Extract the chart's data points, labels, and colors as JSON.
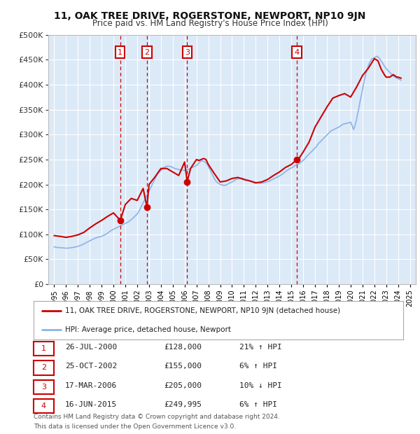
{
  "title": "11, OAK TREE DRIVE, ROGERSTONE, NEWPORT, NP10 9JN",
  "subtitle": "Price paid vs. HM Land Registry's House Price Index (HPI)",
  "plot_bg_color": "#dce9f7",
  "ylim": [
    0,
    500000
  ],
  "yticks": [
    0,
    50000,
    100000,
    150000,
    200000,
    250000,
    300000,
    350000,
    400000,
    450000,
    500000
  ],
  "xlim_start": 1994.5,
  "xlim_end": 2025.5,
  "hpi_color": "#8ab4e8",
  "price_color": "#cc0000",
  "sale_dot_color": "#cc0000",
  "annotation_box_color": "#cc0000",
  "vline_color": "#cc0000",
  "grid_color": "#ffffff",
  "sales": [
    {
      "id": 1,
      "date_label": "26-JUL-2000",
      "year": 2000.57,
      "price": 128000,
      "pct": "21%",
      "direction": "↑"
    },
    {
      "id": 2,
      "date_label": "25-OCT-2002",
      "year": 2002.82,
      "price": 155000,
      "pct": "6%",
      "direction": "↑"
    },
    {
      "id": 3,
      "date_label": "17-MAR-2006",
      "year": 2006.21,
      "price": 205000,
      "pct": "10%",
      "direction": "↓"
    },
    {
      "id": 4,
      "date_label": "16-JUN-2015",
      "year": 2015.46,
      "price": 249995,
      "pct": "6%",
      "direction": "↑"
    }
  ],
  "legend_label_red": "11, OAK TREE DRIVE, ROGERSTONE, NEWPORT, NP10 9JN (detached house)",
  "legend_label_blue": "HPI: Average price, detached house, Newport",
  "footnote1": "Contains HM Land Registry data © Crown copyright and database right 2024.",
  "footnote2": "This data is licensed under the Open Government Licence v3.0.",
  "hpi_data": {
    "years": [
      1995.0,
      1995.08,
      1995.17,
      1995.25,
      1995.33,
      1995.42,
      1995.5,
      1995.58,
      1995.67,
      1995.75,
      1995.83,
      1995.92,
      1996.0,
      1996.08,
      1996.17,
      1996.25,
      1996.33,
      1996.42,
      1996.5,
      1996.58,
      1996.67,
      1996.75,
      1996.83,
      1996.92,
      1997.0,
      1997.08,
      1997.17,
      1997.25,
      1997.33,
      1997.42,
      1997.5,
      1997.58,
      1997.67,
      1997.75,
      1997.83,
      1997.92,
      1998.0,
      1998.08,
      1998.17,
      1998.25,
      1998.33,
      1998.42,
      1998.5,
      1998.58,
      1998.67,
      1998.75,
      1998.83,
      1998.92,
      1999.0,
      1999.08,
      1999.17,
      1999.25,
      1999.33,
      1999.42,
      1999.5,
      1999.58,
      1999.67,
      1999.75,
      1999.83,
      1999.92,
      2000.0,
      2000.08,
      2000.17,
      2000.25,
      2000.33,
      2000.42,
      2000.5,
      2000.58,
      2000.67,
      2000.75,
      2000.83,
      2000.92,
      2001.0,
      2001.08,
      2001.17,
      2001.25,
      2001.33,
      2001.42,
      2001.5,
      2001.58,
      2001.67,
      2001.75,
      2001.83,
      2001.92,
      2002.0,
      2002.08,
      2002.17,
      2002.25,
      2002.33,
      2002.42,
      2002.5,
      2002.58,
      2002.67,
      2002.75,
      2002.83,
      2002.92,
      2003.0,
      2003.08,
      2003.17,
      2003.25,
      2003.33,
      2003.42,
      2003.5,
      2003.58,
      2003.67,
      2003.75,
      2003.83,
      2003.92,
      2004.0,
      2004.08,
      2004.17,
      2004.25,
      2004.33,
      2004.42,
      2004.5,
      2004.58,
      2004.67,
      2004.75,
      2004.83,
      2004.92,
      2005.0,
      2005.08,
      2005.17,
      2005.25,
      2005.33,
      2005.42,
      2005.5,
      2005.58,
      2005.67,
      2005.75,
      2005.83,
      2005.92,
      2006.0,
      2006.08,
      2006.17,
      2006.25,
      2006.33,
      2006.42,
      2006.5,
      2006.58,
      2006.67,
      2006.75,
      2006.83,
      2006.92,
      2007.0,
      2007.08,
      2007.17,
      2007.25,
      2007.33,
      2007.42,
      2007.5,
      2007.58,
      2007.67,
      2007.75,
      2007.83,
      2007.92,
      2008.0,
      2008.08,
      2008.17,
      2008.25,
      2008.33,
      2008.42,
      2008.5,
      2008.58,
      2008.67,
      2008.75,
      2008.83,
      2008.92,
      2009.0,
      2009.08,
      2009.17,
      2009.25,
      2009.33,
      2009.42,
      2009.5,
      2009.58,
      2009.67,
      2009.75,
      2009.83,
      2009.92,
      2010.0,
      2010.08,
      2010.17,
      2010.25,
      2010.33,
      2010.42,
      2010.5,
      2010.58,
      2010.67,
      2010.75,
      2010.83,
      2010.92,
      2011.0,
      2011.08,
      2011.17,
      2011.25,
      2011.33,
      2011.42,
      2011.5,
      2011.58,
      2011.67,
      2011.75,
      2011.83,
      2011.92,
      2012.0,
      2012.08,
      2012.17,
      2012.25,
      2012.33,
      2012.42,
      2012.5,
      2012.58,
      2012.67,
      2012.75,
      2012.83,
      2012.92,
      2013.0,
      2013.08,
      2013.17,
      2013.25,
      2013.33,
      2013.42,
      2013.5,
      2013.58,
      2013.67,
      2013.75,
      2013.83,
      2013.92,
      2014.0,
      2014.08,
      2014.17,
      2014.25,
      2014.33,
      2014.42,
      2014.5,
      2014.58,
      2014.67,
      2014.75,
      2014.83,
      2014.92,
      2015.0,
      2015.08,
      2015.17,
      2015.25,
      2015.33,
      2015.42,
      2015.5,
      2015.58,
      2015.67,
      2015.75,
      2015.83,
      2015.92,
      2016.0,
      2016.08,
      2016.17,
      2016.25,
      2016.33,
      2016.42,
      2016.5,
      2016.58,
      2016.67,
      2016.75,
      2016.83,
      2016.92,
      2017.0,
      2017.08,
      2017.17,
      2017.25,
      2017.33,
      2017.42,
      2017.5,
      2017.58,
      2017.67,
      2017.75,
      2017.83,
      2017.92,
      2018.0,
      2018.08,
      2018.17,
      2018.25,
      2018.33,
      2018.42,
      2018.5,
      2018.58,
      2018.67,
      2018.75,
      2018.83,
      2018.92,
      2019.0,
      2019.08,
      2019.17,
      2019.25,
      2019.33,
      2019.42,
      2019.5,
      2019.58,
      2019.67,
      2019.75,
      2019.83,
      2019.92,
      2020.0,
      2020.08,
      2020.17,
      2020.25,
      2020.33,
      2020.42,
      2020.5,
      2020.58,
      2020.67,
      2020.75,
      2020.83,
      2020.92,
      2021.0,
      2021.08,
      2021.17,
      2021.25,
      2021.33,
      2021.42,
      2021.5,
      2021.58,
      2021.67,
      2021.75,
      2021.83,
      2021.92,
      2022.0,
      2022.08,
      2022.17,
      2022.25,
      2022.33,
      2022.42,
      2022.5,
      2022.58,
      2022.67,
      2022.75,
      2022.83,
      2022.92,
      2023.0,
      2023.08,
      2023.17,
      2023.25,
      2023.33,
      2023.42,
      2023.5,
      2023.58,
      2023.67,
      2023.75,
      2023.83,
      2023.92,
      2024.0,
      2024.08,
      2024.17,
      2024.25
    ],
    "values": [
      75000,
      74500,
      74000,
      73800,
      73600,
      73500,
      73400,
      73200,
      73000,
      72800,
      72600,
      72500,
      72400,
      72300,
      72500,
      72800,
      73000,
      73200,
      73500,
      73800,
      74000,
      74500,
      75000,
      75500,
      76000,
      76800,
      77500,
      78200,
      79000,
      80000,
      81000,
      82000,
      83000,
      84000,
      85000,
      86000,
      87000,
      88000,
      89000,
      90000,
      91000,
      92000,
      93000,
      93500,
      94000,
      94500,
      95000,
      95500,
      96000,
      97000,
      98000,
      99000,
      100000,
      101000,
      102500,
      104000,
      105500,
      107000,
      108000,
      109000,
      110000,
      111000,
      112000,
      113000,
      114000,
      115000,
      116000,
      117000,
      118000,
      119000,
      120000,
      121000,
      122000,
      123000,
      124000,
      125000,
      126500,
      128000,
      129500,
      131000,
      133000,
      135000,
      137000,
      139000,
      141000,
      144000,
      147000,
      151000,
      155000,
      159000,
      163000,
      167000,
      171000,
      175000,
      179000,
      183000,
      187000,
      191000,
      195000,
      199000,
      203000,
      207000,
      211000,
      215000,
      219000,
      222000,
      224000,
      226000,
      228000,
      230000,
      232000,
      234000,
      235000,
      236000,
      236500,
      237000,
      236500,
      236000,
      235500,
      235000,
      234000,
      233000,
      232000,
      231500,
      231000,
      230500,
      230000,
      229500,
      229000,
      228800,
      228600,
      228400,
      228200,
      228500,
      229000,
      229500,
      230000,
      231000,
      232000,
      233000,
      234000,
      235000,
      236000,
      237000,
      238000,
      240000,
      242000,
      244000,
      246000,
      247000,
      247500,
      247000,
      246000,
      244000,
      242000,
      240000,
      236000,
      232000,
      228000,
      224000,
      220000,
      216000,
      212000,
      209000,
      206000,
      204000,
      202500,
      201000,
      200000,
      199500,
      199000,
      198500,
      198000,
      198500,
      199000,
      200000,
      201000,
      202000,
      203000,
      204000,
      205000,
      206000,
      207500,
      209000,
      210000,
      210500,
      211000,
      211500,
      212000,
      212500,
      213000,
      212000,
      211000,
      210000,
      209500,
      209000,
      208500,
      208000,
      207500,
      207000,
      206500,
      206000,
      205500,
      205000,
      204500,
      204000,
      203500,
      203000,
      202500,
      202000,
      202500,
      203000,
      203500,
      204000,
      204500,
      205000,
      205500,
      206000,
      207000,
      208000,
      209000,
      210000,
      211000,
      212000,
      213000,
      214000,
      215000,
      216000,
      217000,
      218000,
      219500,
      221000,
      222500,
      224000,
      225500,
      227000,
      228500,
      230000,
      231000,
      232000,
      233000,
      234000,
      235500,
      237000,
      238000,
      239000,
      240000,
      241000,
      242000,
      243500,
      245000,
      246500,
      248000,
      250000,
      252000,
      255000,
      257000,
      259000,
      261000,
      263000,
      265000,
      267000,
      269000,
      271000,
      273000,
      275000,
      278000,
      281000,
      283000,
      285000,
      287000,
      289000,
      291000,
      293000,
      295000,
      297000,
      299000,
      301000,
      303000,
      305000,
      307000,
      308000,
      309000,
      310000,
      311000,
      312000,
      313000,
      314000,
      315000,
      316000,
      317500,
      319000,
      320500,
      321000,
      321500,
      322000,
      322500,
      323000,
      323500,
      324000,
      325000,
      320000,
      316000,
      310000,
      315000,
      322000,
      330000,
      340000,
      350000,
      360000,
      370000,
      380000,
      390000,
      400000,
      410000,
      418000,
      425000,
      432000,
      438000,
      443000,
      447000,
      450000,
      452000,
      453000,
      454000,
      455000,
      456000,
      457000,
      455000,
      453000,
      450000,
      447000,
      444000,
      441000,
      438000,
      435000,
      432000,
      430000,
      428000,
      426000,
      424000,
      422000,
      420000,
      418000,
      416000,
      415000,
      414000,
      413000,
      412000,
      411000,
      410000,
      409000
    ]
  },
  "red_data": {
    "years": [
      1995.0,
      1995.5,
      1996.0,
      1996.5,
      1997.0,
      1997.5,
      1998.0,
      1998.5,
      1999.0,
      1999.5,
      2000.0,
      2000.57,
      2001.0,
      2001.5,
      2002.0,
      2002.5,
      2002.82,
      2003.0,
      2003.5,
      2004.0,
      2004.5,
      2005.0,
      2005.5,
      2006.0,
      2006.21,
      2006.5,
      2007.0,
      2007.2,
      2007.4,
      2007.6,
      2007.8,
      2008.0,
      2008.5,
      2009.0,
      2009.5,
      2010.0,
      2010.5,
      2011.0,
      2011.5,
      2012.0,
      2012.5,
      2013.0,
      2013.5,
      2014.0,
      2014.5,
      2015.0,
      2015.46,
      2015.5,
      2016.0,
      2016.5,
      2017.0,
      2017.5,
      2018.0,
      2018.5,
      2019.0,
      2019.5,
      2020.0,
      2020.5,
      2021.0,
      2021.5,
      2022.0,
      2022.3,
      2022.6,
      2022.9,
      2023.0,
      2023.3,
      2023.6,
      2023.9,
      2024.0,
      2024.25
    ],
    "values": [
      97500,
      96000,
      94000,
      96000,
      99000,
      104000,
      113000,
      121000,
      128000,
      136000,
      143000,
      128000,
      160000,
      172000,
      168000,
      192000,
      155000,
      200000,
      215000,
      232000,
      232000,
      225000,
      218000,
      245000,
      205000,
      232000,
      250000,
      248000,
      250000,
      252000,
      250000,
      240000,
      222000,
      205000,
      207000,
      212000,
      214000,
      210000,
      207000,
      203000,
      205000,
      210000,
      218000,
      225000,
      234000,
      240000,
      249995,
      247000,
      265000,
      285000,
      315000,
      335000,
      355000,
      373000,
      378000,
      382000,
      375000,
      395000,
      418000,
      433000,
      452000,
      448000,
      430000,
      418000,
      415000,
      415000,
      420000,
      415000,
      415000,
      413000
    ]
  }
}
